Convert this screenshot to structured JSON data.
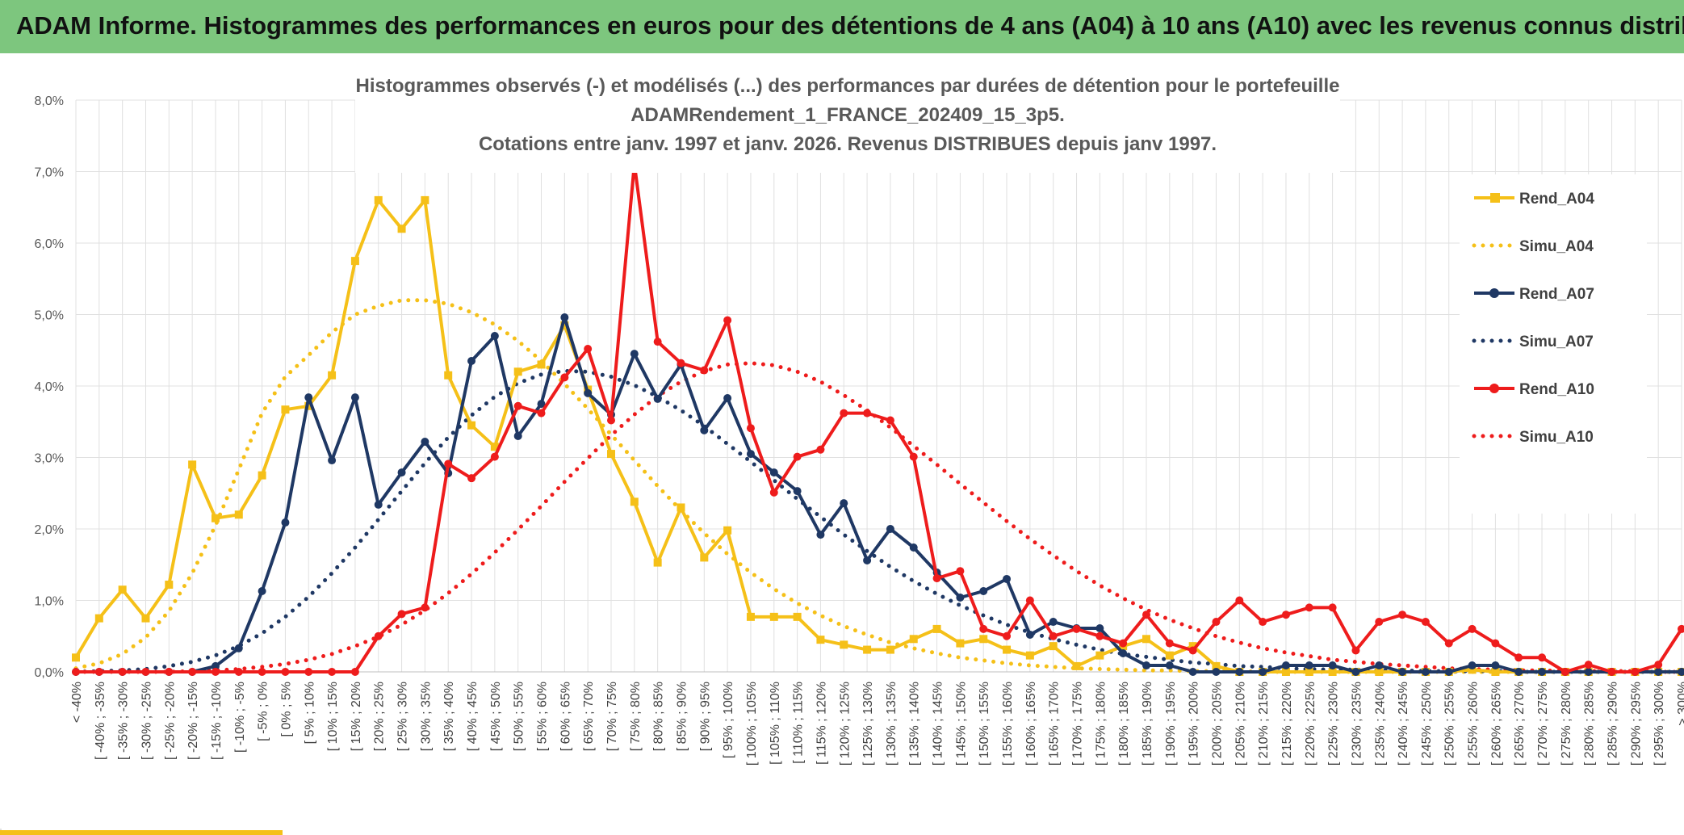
{
  "header": {
    "title": "ADAM Informe. Histogrammes des performances en euros pour des détentions de 4 ans (A04) à 10 ans (A10) avec les revenus connus distribués"
  },
  "colors": {
    "header_bg": "#7dc67e",
    "a04": "#f5c018",
    "a07": "#1f3864",
    "a10": "#ee1c1c",
    "grid": "#e0e0e0"
  },
  "chart_data": {
    "type": "line",
    "title_lines": [
      "Histogrammes observés (-) et modélisés (...) des performances  par durées de détention pour le portefeuille",
      "ADAMRendement_1_FRANCE_202409_15_3p5.",
      "Cotations entre janv. 1997 et janv. 2026. Revenus DISTRIBUES depuis janv 1997."
    ],
    "xlabel": "",
    "ylabel": "",
    "ylim": [
      0,
      0.08
    ],
    "y_ticks": [
      "0,0%",
      "1,0%",
      "2,0%",
      "3,0%",
      "4,0%",
      "5,0%",
      "6,0%",
      "7,0%",
      "8,0%"
    ],
    "grid": true,
    "legend_position": "right",
    "categories": [
      "< -40%",
      "[ -40% ; -35%",
      "[ -35% ; -30%",
      "[ -30% ; -25%",
      "[ -25% ; -20%",
      "[ -20% ; -15%",
      "[ -15% ; -10%",
      "[ -10% ; -5%",
      "[ -5% ; 0%",
      "[ 0% ; 5%",
      "[ 5% ; 10%",
      "[ 10% ; 15%",
      "[ 15% ; 20%",
      "[ 20% ; 25%",
      "[ 25% ; 30%",
      "[ 30% ; 35%",
      "[ 35% ; 40%",
      "[ 40% ; 45%",
      "[ 45% ; 50%",
      "[ 50% ; 55%",
      "[ 55% ; 60%",
      "[ 60% ; 65%",
      "[ 65% ; 70%",
      "[ 70% ; 75%",
      "[ 75% ; 80%",
      "[ 80% ; 85%",
      "[ 85% ; 90%",
      "[ 90% ; 95%",
      "[ 95% ; 100%",
      "[ 100% ; 105%",
      "[ 105% ; 110%",
      "[ 110% ; 115%",
      "[ 115% ; 120%",
      "[ 120% ; 125%",
      "[ 125% ; 130%",
      "[ 130% ; 135%",
      "[ 135% ; 140%",
      "[ 140% ; 145%",
      "[ 145% ; 150%",
      "[ 150% ; 155%",
      "[ 155% ; 160%",
      "[ 160% ; 165%",
      "[ 165% ; 170%",
      "[ 170% ; 175%",
      "[ 175% ; 180%",
      "[ 180% ; 185%",
      "[ 185% ; 190%",
      "[ 190% ; 195%",
      "[ 195% ; 200%",
      "[ 200% ; 205%",
      "[ 205% ; 210%",
      "[ 210% ; 215%",
      "[ 215% ; 220%",
      "[ 220% ; 225%",
      "[ 225% ; 230%",
      "[ 230% ; 235%",
      "[ 235% ; 240%",
      "[ 240% ; 245%",
      "[ 245% ; 250%",
      "[ 250% ; 255%",
      "[ 255% ; 260%",
      "[ 260% ; 265%",
      "[ 265% ; 270%",
      "[ 270% ; 275%",
      "[ 275% ; 280%",
      "[ 280% ; 285%",
      "[ 285% ; 290%",
      "[ 290% ; 295%",
      "[ 295% ; 300%",
      "> 300%"
    ],
    "series": [
      {
        "name": "Rend_A04",
        "style": "solid",
        "marker": "square",
        "color": "#f5c018",
        "values": [
          0.002,
          0.0075,
          0.0115,
          0.0075,
          0.0122,
          0.029,
          0.0215,
          0.022,
          0.0275,
          0.0367,
          0.0372,
          0.0415,
          0.0575,
          0.066,
          0.062,
          0.066,
          0.0415,
          0.0345,
          0.0315,
          0.042,
          0.043,
          0.0485,
          0.0395,
          0.0305,
          0.0238,
          0.0153,
          0.023,
          0.016,
          0.0198,
          0.0077,
          0.0077,
          0.0077,
          0.0045,
          0.0038,
          0.0031,
          0.0031,
          0.0046,
          0.006,
          0.004,
          0.0046,
          0.0031,
          0.0023,
          0.0036,
          0.0008,
          0.0023,
          0.0036,
          0.0046,
          0.0023,
          0.0036,
          0.0008,
          0,
          0,
          0,
          0,
          0,
          0,
          0,
          0,
          0,
          0,
          0.0003,
          0,
          0,
          0,
          0,
          0,
          0,
          0,
          0,
          0
        ]
      },
      {
        "name": "Simu_A04",
        "style": "dotted",
        "color": "#f5c018",
        "values": [
          0.0005,
          0.0012,
          0.0025,
          0.0048,
          0.0085,
          0.0138,
          0.0205,
          0.0283,
          0.0362,
          0.0413,
          0.0443,
          0.0475,
          0.05,
          0.0512,
          0.052,
          0.052,
          0.0515,
          0.0503,
          0.0486,
          0.0463,
          0.0435,
          0.0403,
          0.0368,
          0.0332,
          0.0296,
          0.026,
          0.0226,
          0.0194,
          0.0165,
          0.0139,
          0.0116,
          0.0096,
          0.0079,
          0.0064,
          0.0052,
          0.0041,
          0.0033,
          0.0026,
          0.002,
          0.0016,
          0.0012,
          0.0009,
          0.0007,
          0.0005,
          0.0004,
          0.0003,
          0.0002,
          0.0002,
          0.0001,
          0.0001,
          0.0001,
          0,
          0,
          0,
          0,
          0,
          0,
          0,
          0,
          0,
          0,
          0,
          0,
          0,
          0,
          0,
          0,
          0,
          0,
          0
        ]
      },
      {
        "name": "Rend_A07",
        "style": "solid",
        "marker": "circle",
        "color": "#1f3864",
        "values": [
          0,
          0,
          0,
          0,
          0,
          0,
          0.0008,
          0.0033,
          0.0113,
          0.0209,
          0.0384,
          0.0296,
          0.0384,
          0.0234,
          0.0279,
          0.0322,
          0.0278,
          0.0435,
          0.047,
          0.033,
          0.0375,
          0.0496,
          0.039,
          0.036,
          0.0445,
          0.0382,
          0.043,
          0.0338,
          0.0383,
          0.0305,
          0.0279,
          0.0253,
          0.0192,
          0.0236,
          0.0156,
          0.02,
          0.0174,
          0.0139,
          0.0104,
          0.0113,
          0.013,
          0.0052,
          0.007,
          0.0061,
          0.0061,
          0.0026,
          0.0009,
          0.0009,
          0,
          0,
          0,
          0,
          0.0009,
          0.0009,
          0.0009,
          0,
          0.0009,
          0,
          0,
          0,
          0.0009,
          0.0009,
          0,
          0,
          0,
          0,
          0,
          0,
          0,
          0
        ]
      },
      {
        "name": "Simu_A07",
        "style": "dotted",
        "color": "#1f3864",
        "values": [
          0,
          0.0001,
          0.0002,
          0.0004,
          0.0008,
          0.0014,
          0.0023,
          0.0036,
          0.0054,
          0.0077,
          0.0105,
          0.0138,
          0.0174,
          0.0213,
          0.0253,
          0.0292,
          0.0328,
          0.0359,
          0.0385,
          0.0404,
          0.0416,
          0.0421,
          0.042,
          0.0413,
          0.0401,
          0.0385,
          0.0366,
          0.0344,
          0.0319,
          0.0294,
          0.0268,
          0.0242,
          0.0217,
          0.0192,
          0.0169,
          0.0147,
          0.0127,
          0.0109,
          0.0093,
          0.0079,
          0.0066,
          0.0055,
          0.0046,
          0.0038,
          0.0031,
          0.0025,
          0.0021,
          0.0017,
          0.0013,
          0.0011,
          0.0008,
          0.0007,
          0.0005,
          0.0004,
          0.0003,
          0.0003,
          0.0002,
          0.0002,
          0.0001,
          0.0001,
          0.0001,
          0.0001,
          0,
          0,
          0,
          0,
          0,
          0,
          0,
          0
        ]
      },
      {
        "name": "Rend_A10",
        "style": "solid",
        "marker": "circle",
        "color": "#ee1c1c",
        "values": [
          0,
          0,
          0,
          0,
          0,
          0,
          0,
          0,
          0,
          0,
          0,
          0,
          0,
          0.005,
          0.0081,
          0.009,
          0.0291,
          0.0271,
          0.0301,
          0.0372,
          0.0362,
          0.0412,
          0.0452,
          0.0352,
          0.0711,
          0.0462,
          0.0432,
          0.0422,
          0.0492,
          0.0341,
          0.0251,
          0.0301,
          0.0311,
          0.0362,
          0.0362,
          0.0352,
          0.0301,
          0.0131,
          0.0141,
          0.006,
          0.005,
          0.01,
          0.005,
          0.006,
          0.005,
          0.004,
          0.008,
          0.004,
          0.003,
          0.007,
          0.01,
          0.007,
          0.008,
          0.009,
          0.009,
          0.003,
          0.007,
          0.008,
          0.007,
          0.004,
          0.006,
          0.004,
          0.002,
          0.002,
          0,
          0.001,
          0,
          0,
          0.001,
          0.006
        ]
      },
      {
        "name": "Simu_A10",
        "style": "dotted",
        "color": "#ee1c1c",
        "values": [
          0,
          0,
          0,
          0,
          0,
          0.0001,
          0.0002,
          0.0004,
          0.0007,
          0.0011,
          0.0017,
          0.0025,
          0.0036,
          0.0049,
          0.0066,
          0.0086,
          0.011,
          0.0137,
          0.0167,
          0.0199,
          0.0232,
          0.0266,
          0.0299,
          0.0331,
          0.036,
          0.0386,
          0.0406,
          0.0421,
          0.043,
          0.0432,
          0.0429,
          0.042,
          0.0406,
          0.0387,
          0.0366,
          0.0342,
          0.0316,
          0.029,
          0.0263,
          0.0237,
          0.0211,
          0.0186,
          0.0163,
          0.0141,
          0.0121,
          0.0103,
          0.0087,
          0.0073,
          0.0061,
          0.005,
          0.0041,
          0.0033,
          0.0027,
          0.0022,
          0.0017,
          0.0014,
          0.0011,
          0.0009,
          0.0007,
          0.0005,
          0.0004,
          0.0003,
          0.0002,
          0.0002,
          0.0001,
          0.0001,
          0.0001,
          0.0001,
          0,
          0
        ]
      }
    ]
  }
}
